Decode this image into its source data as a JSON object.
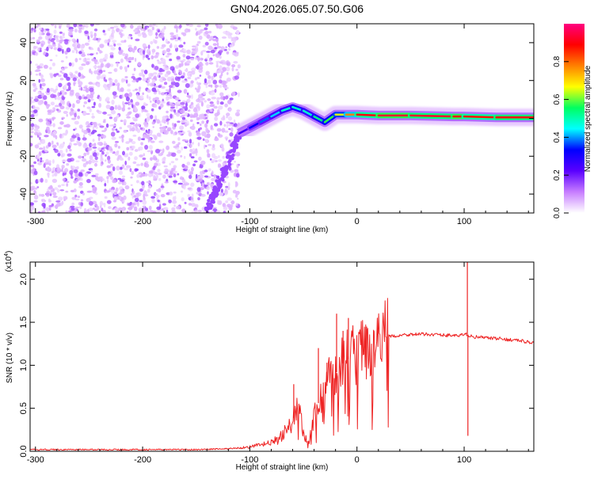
{
  "title": "GN04.2026.065.07.50.G06",
  "chart_data": [
    {
      "type": "heatmap",
      "title": "GN04.2026.065.07.50.G06",
      "xlabel": "Height of straight line (km)",
      "ylabel": "Frequency (Hz)",
      "xlim": [
        -305,
        165
      ],
      "ylim": [
        -50,
        50
      ],
      "x_ticks": [
        -300,
        -200,
        -100,
        0,
        100
      ],
      "x_tick_labels": [
        "-300",
        "-200",
        "-100",
        "0",
        "100"
      ],
      "y_ticks": [
        -40,
        -20,
        0,
        20,
        40
      ],
      "y_tick_labels": [
        "-40",
        "-20",
        "0",
        "20",
        "40"
      ],
      "colorbar": {
        "label": "Normalized spectral amplitude",
        "range": [
          0,
          1
        ],
        "ticks": [
          0.0,
          0.2,
          0.4,
          0.6,
          0.8
        ],
        "tick_labels": [
          "0.0",
          "0.2",
          "0.4",
          "0.6",
          "0.8"
        ],
        "colors": [
          "#ffffff",
          "#c77dff",
          "#5a00ff",
          "#0000ff",
          "#00ffff",
          "#00ff60",
          "#ffff00",
          "#ff8000",
          "#ff0000",
          "#ff0080"
        ]
      },
      "noise_region": {
        "x_range": [
          -305,
          -110
        ],
        "y_range": [
          -50,
          50
        ],
        "level": 0.12
      },
      "streak": {
        "x_range": [
          -140,
          -110
        ],
        "y_range": [
          -50,
          -8
        ]
      },
      "ridge": [
        {
          "x": -110,
          "freq": -8,
          "amp": 0.2
        },
        {
          "x": -100,
          "freq": -5,
          "amp": 0.3
        },
        {
          "x": -90,
          "freq": -2,
          "amp": 0.35
        },
        {
          "x": -80,
          "freq": 1,
          "amp": 0.4
        },
        {
          "x": -70,
          "freq": 4,
          "amp": 0.45
        },
        {
          "x": -60,
          "freq": 6,
          "amp": 0.5
        },
        {
          "x": -50,
          "freq": 4,
          "amp": 0.45
        },
        {
          "x": -40,
          "freq": 1,
          "amp": 0.5
        },
        {
          "x": -30,
          "freq": -2,
          "amp": 0.55
        },
        {
          "x": -20,
          "freq": 2,
          "amp": 0.6
        },
        {
          "x": -10,
          "freq": 2,
          "amp": 0.7
        },
        {
          "x": 0,
          "freq": 2,
          "amp": 0.85
        },
        {
          "x": 20,
          "freq": 1.5,
          "amp": 0.95
        },
        {
          "x": 50,
          "freq": 1.5,
          "amp": 0.9
        },
        {
          "x": 90,
          "freq": 1,
          "amp": 0.95
        },
        {
          "x": 100,
          "freq": 1,
          "amp": 0.85
        },
        {
          "x": 130,
          "freq": 0.5,
          "amp": 0.9
        },
        {
          "x": 165,
          "freq": 0.5,
          "amp": 0.9
        }
      ]
    },
    {
      "type": "line",
      "xlabel": "Height of straight line (km)",
      "ylabel": "SNR (10 * v/v)",
      "y_multiplier": "(x10",
      "y_multiplier_exp": "4",
      "y_multiplier_close": ")",
      "xlim": [
        -305,
        165
      ],
      "ylim": [
        0,
        2.2
      ],
      "x_ticks": [
        -300,
        -200,
        -100,
        0,
        100
      ],
      "x_tick_labels": [
        "-300",
        "-200",
        "-100",
        "0",
        "100"
      ],
      "y_ticks": [
        0,
        0.5,
        1.0,
        1.5,
        2.0
      ],
      "y_tick_labels": [
        "0.0",
        "0.5",
        "1.0",
        "1.5",
        "2.0"
      ],
      "color": "#ee2222",
      "x": [
        -305,
        -250,
        -200,
        -150,
        -120,
        -100,
        -80,
        -70,
        -60,
        -55,
        -50,
        -45,
        -40,
        -35,
        -30,
        -25,
        -20,
        -15,
        -10,
        -5,
        0,
        5,
        10,
        20,
        30,
        40,
        50,
        60,
        70,
        80,
        90,
        95,
        100,
        103,
        105,
        110,
        120,
        130,
        140,
        150,
        165
      ],
      "y": [
        0.02,
        0.02,
        0.02,
        0.02,
        0.03,
        0.05,
        0.1,
        0.18,
        0.35,
        0.55,
        0.2,
        0.1,
        0.4,
        0.6,
        0.7,
        0.85,
        0.9,
        1.0,
        1.05,
        1.1,
        1.1,
        1.15,
        1.2,
        1.28,
        1.33,
        1.35,
        1.36,
        1.36,
        1.36,
        1.35,
        1.35,
        1.34,
        1.36,
        1.36,
        1.34,
        1.33,
        1.32,
        1.31,
        1.3,
        1.29,
        1.26
      ],
      "spikes": [
        {
          "x": -59,
          "y": 0.78
        },
        {
          "x": -36,
          "y": 1.2
        },
        {
          "x": -28,
          "y": 1.03
        },
        {
          "x": -19,
          "y": 1.6
        },
        {
          "x": -13,
          "y": 1.4
        },
        {
          "x": -8,
          "y": 1.55
        },
        {
          "x": 9,
          "y": 1.45
        },
        {
          "x": 103,
          "y": 2.2
        },
        {
          "x": 103.5,
          "y": 0.18
        }
      ]
    }
  ]
}
